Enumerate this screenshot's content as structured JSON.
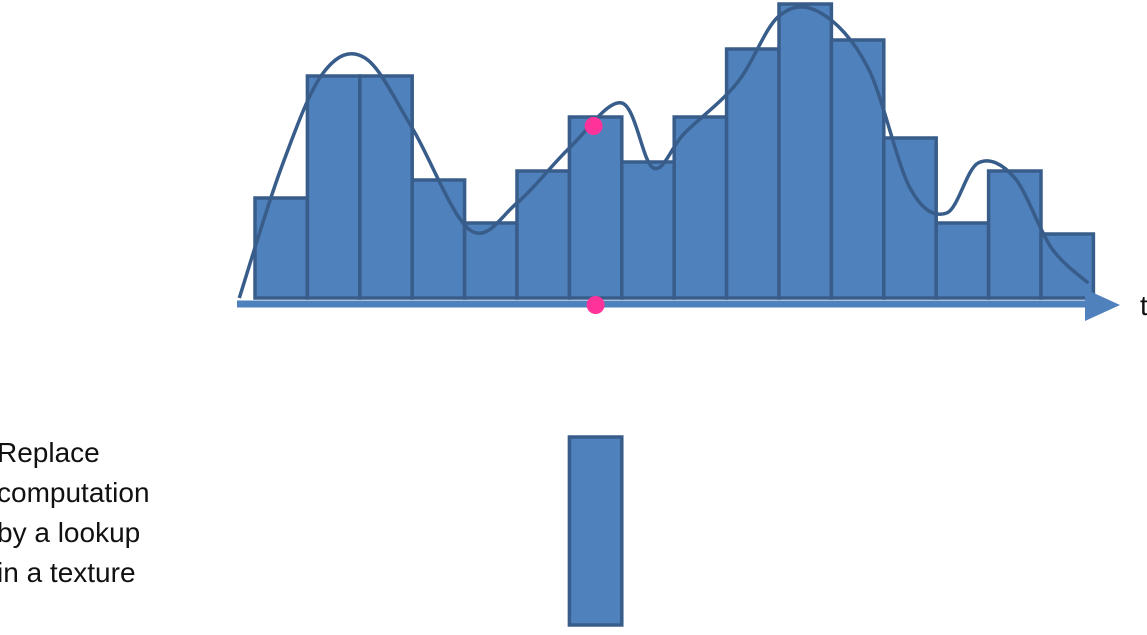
{
  "chart_data": {
    "type": "bar",
    "values": [
      100,
      222,
      222,
      118,
      75,
      127,
      181,
      136,
      181,
      249,
      294,
      258,
      160,
      75,
      127,
      64
    ],
    "ylim": [
      0,
      294
    ],
    "highlight_bin": 6,
    "sample_point": {
      "x": 6.5,
      "y": 172
    },
    "curve": [
      [
        -0.3,
        0
      ],
      [
        0.5,
        130
      ],
      [
        1.3,
        225
      ],
      [
        2.1,
        240
      ],
      [
        3.0,
        170
      ],
      [
        4.1,
        68
      ],
      [
        5.0,
        95
      ],
      [
        6.0,
        150
      ],
      [
        7.0,
        195
      ],
      [
        7.6,
        130
      ],
      [
        8.2,
        165
      ],
      [
        9.2,
        215
      ],
      [
        10.0,
        282
      ],
      [
        10.8,
        285
      ],
      [
        11.7,
        230
      ],
      [
        12.5,
        110
      ],
      [
        13.2,
        85
      ],
      [
        13.8,
        135
      ],
      [
        14.5,
        120
      ],
      [
        15.2,
        50
      ],
      [
        15.9,
        15
      ]
    ],
    "colors": {
      "bar": "#4f81bd",
      "bar_stroke": "#385d8a",
      "curve": "#385d8a",
      "axis": "#4f81bd",
      "point": "#ff3399"
    }
  },
  "axis_label": "t",
  "caption_lines": [
    "Replace",
    "computation",
    "by a lookup",
    "in a texture"
  ]
}
